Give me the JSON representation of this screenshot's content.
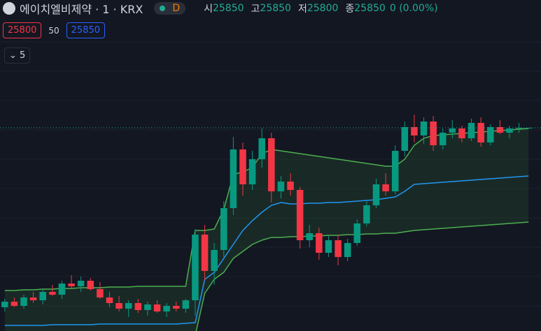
{
  "header": {
    "symbol": "에이치엘비제약 · 1 · KRX",
    "interval_badge": "D",
    "open_label": "시",
    "open": "25850",
    "high_label": "고",
    "high": "25850",
    "low_label": "저",
    "low": "25800",
    "close_label": "종",
    "close": "25850",
    "change": "0 (0.00%)",
    "bid": "25800",
    "spread": "50",
    "ask": "25850",
    "indicator_toggle": "5"
  },
  "chart_data": {
    "type": "candlestick",
    "ylim": [
      11300,
      32000
    ],
    "up_color": "#089981",
    "down_color": "#f23645",
    "ohlc": [
      [
        13000,
        13600,
        12700,
        13400
      ],
      [
        13400,
        13700,
        13000,
        13100
      ],
      [
        13100,
        13900,
        12900,
        13700
      ],
      [
        13700,
        14100,
        13300,
        13500
      ],
      [
        13500,
        14300,
        13200,
        14100
      ],
      [
        14100,
        14600,
        13800,
        13900
      ],
      [
        13900,
        14900,
        13600,
        14700
      ],
      [
        14700,
        15300,
        14300,
        14500
      ],
      [
        14500,
        15200,
        14100,
        14900
      ],
      [
        14900,
        15100,
        14200,
        14300
      ],
      [
        14300,
        14800,
        13600,
        13700
      ],
      [
        13700,
        14100,
        13000,
        13300
      ],
      [
        13300,
        13800,
        12700,
        12900
      ],
      [
        12900,
        13500,
        12300,
        13300
      ],
      [
        13300,
        13600,
        12600,
        12800
      ],
      [
        12800,
        13400,
        12400,
        13200
      ],
      [
        13200,
        13500,
        12600,
        12700
      ],
      [
        12700,
        13300,
        12300,
        13100
      ],
      [
        13100,
        13400,
        12700,
        12900
      ],
      [
        12900,
        13600,
        12600,
        13500
      ],
      [
        13500,
        18600,
        12400,
        18200
      ],
      [
        18200,
        18900,
        14900,
        15600
      ],
      [
        15600,
        17600,
        14600,
        17100
      ],
      [
        17100,
        20600,
        16600,
        20100
      ],
      [
        20100,
        25200,
        19600,
        24300
      ],
      [
        24300,
        24800,
        21000,
        21800
      ],
      [
        21800,
        24200,
        21400,
        23600
      ],
      [
        23600,
        25800,
        23000,
        25100
      ],
      [
        25100,
        25500,
        20500,
        21300
      ],
      [
        21300,
        22400,
        20800,
        22000
      ],
      [
        22000,
        22600,
        21000,
        21400
      ],
      [
        21400,
        21600,
        17200,
        17800
      ],
      [
        17800,
        18900,
        17300,
        18300
      ],
      [
        18300,
        18700,
        16400,
        16900
      ],
      [
        16900,
        18100,
        16600,
        17800
      ],
      [
        17800,
        18200,
        16000,
        16600
      ],
      [
        16600,
        17900,
        16300,
        17600
      ],
      [
        17600,
        19300,
        17400,
        19000
      ],
      [
        19000,
        20600,
        18800,
        20300
      ],
      [
        20300,
        22200,
        20100,
        21800
      ],
      [
        21800,
        22600,
        21000,
        21300
      ],
      [
        21300,
        24600,
        21100,
        24200
      ],
      [
        24200,
        26300,
        23800,
        25900
      ],
      [
        25900,
        26800,
        24800,
        25300
      ],
      [
        25300,
        26600,
        24700,
        26300
      ],
      [
        26300,
        26700,
        24200,
        24600
      ],
      [
        24600,
        25800,
        24300,
        25500
      ],
      [
        25500,
        26400,
        25100,
        25800
      ],
      [
        25800,
        26000,
        24800,
        25100
      ],
      [
        25100,
        26500,
        24900,
        26200
      ],
      [
        26200,
        26600,
        24500,
        24800
      ],
      [
        24800,
        26100,
        24600,
        25900
      ],
      [
        25900,
        26400,
        25400,
        25500
      ],
      [
        25500,
        26000,
        25100,
        25800
      ],
      [
        25800,
        26200,
        25500,
        25850
      ],
      [
        25850,
        25850,
        25800,
        25850
      ]
    ],
    "fill_color": "#1f3a2a",
    "lines": [
      {
        "color": "#4caf50",
        "values": [
          14200,
          14200,
          14250,
          14250,
          14300,
          14300,
          14350,
          14350,
          14400,
          14400,
          14400,
          14450,
          14450,
          14450,
          14500,
          14500,
          14500,
          14500,
          14500,
          14500,
          18500,
          18500,
          18600,
          20000,
          22500,
          22700,
          23000,
          24000,
          24300,
          24200,
          24100,
          24000,
          23900,
          23800,
          23700,
          23600,
          23500,
          23400,
          23300,
          23200,
          23100,
          23100,
          23600,
          24600,
          25100,
          25300,
          25350,
          25400,
          25450,
          25500,
          25550,
          25600,
          25650,
          25700,
          25750,
          25800
        ]
      },
      {
        "color": "#2196f3",
        "values": [
          11700,
          11700,
          11700,
          11700,
          11700,
          11750,
          11750,
          11750,
          11750,
          11750,
          11800,
          11800,
          11800,
          11800,
          11800,
          11800,
          11800,
          11800,
          11800,
          11850,
          11900,
          15000,
          15500,
          16500,
          17500,
          18500,
          19200,
          19800,
          20300,
          20500,
          20400,
          20400,
          20450,
          20450,
          20500,
          20500,
          20550,
          20600,
          20650,
          20700,
          20800,
          20900,
          21300,
          21800,
          21850,
          21900,
          21950,
          22000,
          22050,
          22100,
          22150,
          22200,
          22250,
          22300,
          22350,
          22400
        ]
      },
      {
        "color": "#4caf50",
        "values": [
          10500,
          10500,
          10500,
          10500,
          10500,
          10500,
          10500,
          10500,
          10500,
          10500,
          10500,
          10500,
          10500,
          10500,
          10500,
          10500,
          10500,
          10500,
          10500,
          10500,
          11000,
          14000,
          15000,
          15500,
          16500,
          17000,
          17500,
          17800,
          18000,
          18000,
          18050,
          18050,
          18100,
          18100,
          18150,
          18150,
          18200,
          18200,
          18250,
          18250,
          18300,
          18300,
          18400,
          18500,
          18550,
          18600,
          18650,
          18700,
          18750,
          18800,
          18850,
          18900,
          18950,
          19000,
          19050,
          19100
        ]
      }
    ]
  }
}
